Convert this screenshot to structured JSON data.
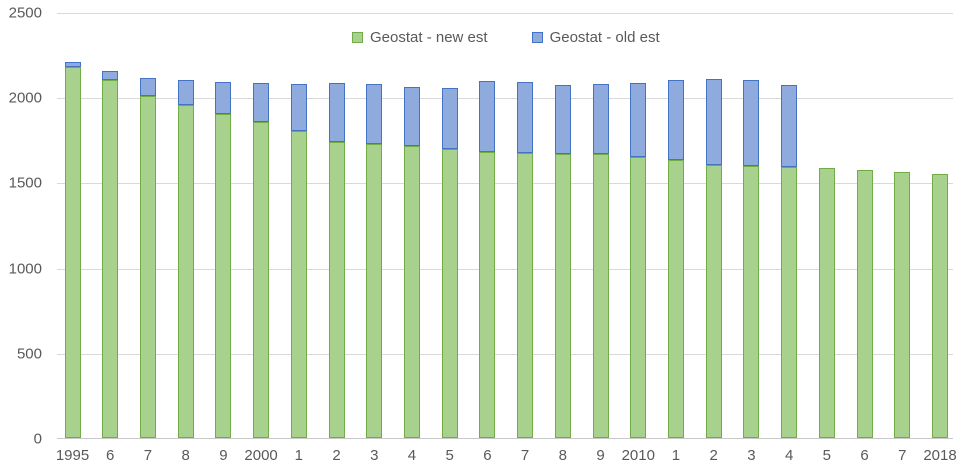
{
  "chart_data": {
    "type": "bar",
    "stacked": true,
    "title": "",
    "xlabel": "",
    "ylabel": "",
    "grid": true,
    "legend_position": "top-center",
    "ylim": [
      0,
      2500
    ],
    "ytick_step": 500,
    "ytick_labels": [
      "0",
      "500",
      "1000",
      "1500",
      "2000",
      "2500"
    ],
    "categories": [
      "1995",
      "6",
      "7",
      "8",
      "9",
      "2000",
      "1",
      "2",
      "3",
      "4",
      "5",
      "6",
      "7",
      "8",
      "9",
      "2010",
      "1",
      "2",
      "3",
      "4",
      "5",
      "6",
      "7",
      "2018"
    ],
    "series": [
      {
        "name": "Geostat - new est",
        "fill_color": "#a9d18e",
        "border_color": "#70ad47",
        "values": [
          2175,
          2100,
          2010,
          1955,
          1900,
          1855,
          1800,
          1735,
          1725,
          1715,
          1695,
          1680,
          1672,
          1668,
          1665,
          1650,
          1632,
          1600,
          1595,
          1590,
          1585,
          1575,
          1562,
          1548
        ]
      },
      {
        "name": "Geostat - old est",
        "fill_color": "#8faadc",
        "border_color": "#4472c4",
        "values": [
          30,
          55,
          100,
          145,
          190,
          230,
          275,
          350,
          350,
          345,
          360,
          415,
          418,
          402,
          410,
          435,
          468,
          505,
          505,
          480,
          0,
          0,
          0,
          0
        ]
      }
    ],
    "stacked_totals": [
      2205,
      2155,
      2110,
      2100,
      2090,
      2085,
      2075,
      2085,
      2075,
      2060,
      2055,
      2095,
      2090,
      2070,
      2075,
      2085,
      2100,
      2105,
      2100,
      2070,
      1585,
      1575,
      1562,
      1548
    ]
  },
  "colors": {
    "gridline": "#d9d9d9",
    "axis_line": "#c9c9c9",
    "axis_text": "#595959",
    "background": "#ffffff"
  }
}
